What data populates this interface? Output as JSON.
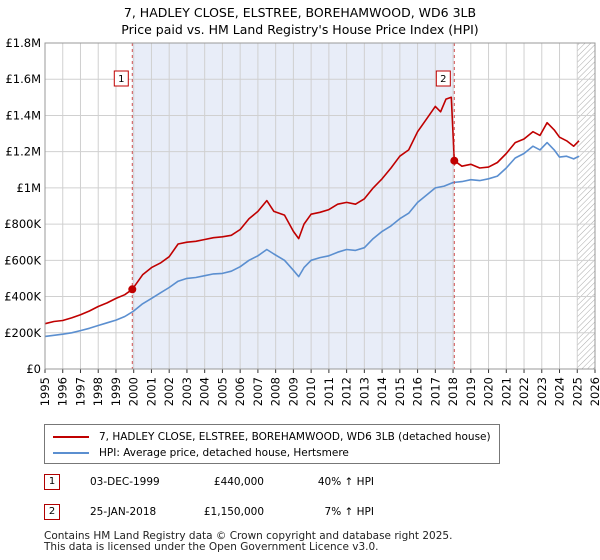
{
  "chart_data": {
    "type": "line",
    "title_line1": "7, HADLEY CLOSE, ELSTREE, BOREHAMWOOD, WD6 3LB",
    "title_line2": "Price paid vs. HM Land Registry's House Price Index (HPI)",
    "xlabel": "",
    "ylabel": "",
    "xlim": [
      1995,
      2026
    ],
    "ylim": [
      0,
      1800000
    ],
    "yticks": [
      0,
      200000,
      400000,
      600000,
      800000,
      1000000,
      1200000,
      1400000,
      1600000,
      1800000
    ],
    "ytick_labels": [
      "£0",
      "£200K",
      "£400K",
      "£600K",
      "£800K",
      "£1M",
      "£1.2M",
      "£1.4M",
      "£1.6M",
      "£1.8M"
    ],
    "xticks": [
      1995,
      1996,
      1997,
      1998,
      1999,
      2000,
      2001,
      2002,
      2003,
      2004,
      2005,
      2006,
      2007,
      2008,
      2009,
      2010,
      2011,
      2012,
      2013,
      2014,
      2015,
      2016,
      2017,
      2018,
      2019,
      2020,
      2021,
      2022,
      2023,
      2024,
      2025,
      2026
    ],
    "grid": true,
    "shaded_region": {
      "from": 1999.92,
      "to": 2018.07,
      "color": "#e8edf8"
    },
    "hatched_region": {
      "from": 2025.0,
      "to": 2026.0
    },
    "series": [
      {
        "name": "7, HADLEY CLOSE, ELSTREE, BOREHAMWOOD, WD6 3LB (detached house)",
        "color": "#c00000",
        "x": [
          1995.0,
          1995.5,
          1996.0,
          1996.5,
          1997.0,
          1997.5,
          1998.0,
          1998.5,
          1999.0,
          1999.5,
          1999.92,
          2000.5,
          2001.0,
          2001.5,
          2002.0,
          2002.5,
          2003.0,
          2003.5,
          2004.0,
          2004.5,
          2005.0,
          2005.5,
          2006.0,
          2006.5,
          2007.0,
          2007.5,
          2007.9,
          2008.5,
          2009.0,
          2009.3,
          2009.6,
          2010.0,
          2010.5,
          2011.0,
          2011.5,
          2012.0,
          2012.5,
          2013.0,
          2013.5,
          2014.0,
          2014.5,
          2015.0,
          2015.5,
          2016.0,
          2016.5,
          2017.0,
          2017.3,
          2017.6,
          2017.9,
          2018.07,
          2018.5,
          2019.0,
          2019.5,
          2020.0,
          2020.5,
          2021.0,
          2021.5,
          2022.0,
          2022.5,
          2022.9,
          2023.3,
          2023.7,
          2024.0,
          2024.4,
          2024.8,
          2025.1
        ],
        "y": [
          250000,
          262000,
          268000,
          282000,
          300000,
          320000,
          345000,
          365000,
          390000,
          410000,
          440000,
          520000,
          560000,
          585000,
          620000,
          690000,
          700000,
          705000,
          715000,
          725000,
          730000,
          738000,
          770000,
          830000,
          870000,
          930000,
          870000,
          850000,
          760000,
          720000,
          800000,
          855000,
          865000,
          880000,
          910000,
          920000,
          910000,
          940000,
          1000000,
          1050000,
          1110000,
          1175000,
          1210000,
          1310000,
          1380000,
          1450000,
          1420000,
          1490000,
          1500000,
          1150000,
          1120000,
          1130000,
          1110000,
          1115000,
          1140000,
          1190000,
          1250000,
          1270000,
          1310000,
          1290000,
          1360000,
          1320000,
          1280000,
          1260000,
          1230000,
          1260000
        ]
      },
      {
        "name": "HPI: Average price, detached house, Hertsmere",
        "color": "#5b8fd0",
        "x": [
          1995.0,
          1995.5,
          1996.0,
          1996.5,
          1997.0,
          1997.5,
          1998.0,
          1998.5,
          1999.0,
          1999.5,
          2000.0,
          2000.5,
          2001.0,
          2001.5,
          2002.0,
          2002.5,
          2003.0,
          2003.5,
          2004.0,
          2004.5,
          2005.0,
          2005.5,
          2006.0,
          2006.5,
          2007.0,
          2007.5,
          2007.9,
          2008.5,
          2009.0,
          2009.3,
          2009.6,
          2010.0,
          2010.5,
          2011.0,
          2011.5,
          2012.0,
          2012.5,
          2013.0,
          2013.5,
          2014.0,
          2014.5,
          2015.0,
          2015.5,
          2016.0,
          2016.5,
          2017.0,
          2017.5,
          2018.0,
          2018.5,
          2019.0,
          2019.5,
          2020.0,
          2020.5,
          2021.0,
          2021.5,
          2022.0,
          2022.5,
          2022.9,
          2023.3,
          2023.7,
          2024.0,
          2024.4,
          2024.8,
          2025.1
        ],
        "y": [
          180000,
          186000,
          192000,
          200000,
          212000,
          225000,
          240000,
          255000,
          270000,
          290000,
          320000,
          360000,
          390000,
          420000,
          450000,
          485000,
          500000,
          505000,
          515000,
          525000,
          528000,
          540000,
          565000,
          600000,
          625000,
          660000,
          635000,
          600000,
          545000,
          510000,
          560000,
          600000,
          615000,
          625000,
          645000,
          660000,
          655000,
          670000,
          720000,
          760000,
          790000,
          830000,
          860000,
          920000,
          960000,
          1000000,
          1010000,
          1030000,
          1035000,
          1045000,
          1040000,
          1050000,
          1065000,
          1110000,
          1165000,
          1190000,
          1230000,
          1210000,
          1250000,
          1210000,
          1170000,
          1175000,
          1160000,
          1175000
        ]
      }
    ],
    "markers": [
      {
        "label": "1",
        "x": 1999.92,
        "y": 440000
      },
      {
        "label": "2",
        "x": 2018.07,
        "y": 1150000
      }
    ]
  },
  "legend": {
    "items": [
      {
        "label": "7, HADLEY CLOSE, ELSTREE, BOREHAMWOOD, WD6 3LB (detached house)",
        "color": "#c00000"
      },
      {
        "label": "HPI: Average price, detached house, Hertsmere",
        "color": "#5b8fd0"
      }
    ]
  },
  "sales": [
    {
      "num": "1",
      "date": "03-DEC-1999",
      "price": "£440,000",
      "hpi": "40% ↑ HPI"
    },
    {
      "num": "2",
      "date": "25-JAN-2018",
      "price": "£1,150,000",
      "hpi": "7% ↑ HPI"
    }
  ],
  "footer": {
    "line1": "Contains HM Land Registry data © Crown copyright and database right 2025.",
    "line2": "This data is licensed under the Open Government Licence v3.0."
  }
}
